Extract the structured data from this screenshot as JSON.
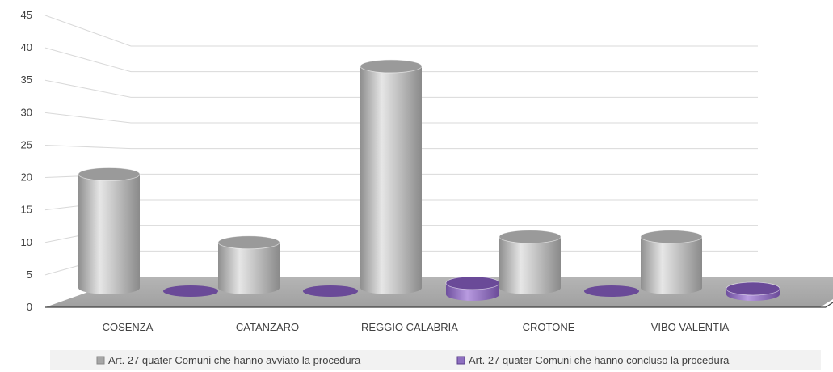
{
  "chart_data": {
    "type": "bar",
    "categories": [
      "COSENZA",
      "CATANZARO",
      "REGGIO CALABRIA",
      "CROTONE",
      "VIBO VALENTIA"
    ],
    "series": [
      {
        "name": "Art. 27 quater Comuni che hanno avviato la procedura",
        "values": [
          20,
          8,
          39,
          9,
          9
        ]
      },
      {
        "name": "Art. 27 quater Comuni che hanno concluso la procedura",
        "values": [
          0,
          0,
          2,
          0,
          1
        ]
      }
    ],
    "y_ticks": [
      "0",
      "5",
      "10",
      "15",
      "20",
      "25",
      "30",
      "35",
      "40",
      "45"
    ],
    "ylim": [
      0,
      45
    ],
    "grid": true,
    "legend_position": "bottom",
    "colors": {
      "series1": "#b8b8b8",
      "series2": "#8e6fc0",
      "floor": "#a6a6a6",
      "grid": "#d9d9d9",
      "text": "#404040"
    }
  }
}
